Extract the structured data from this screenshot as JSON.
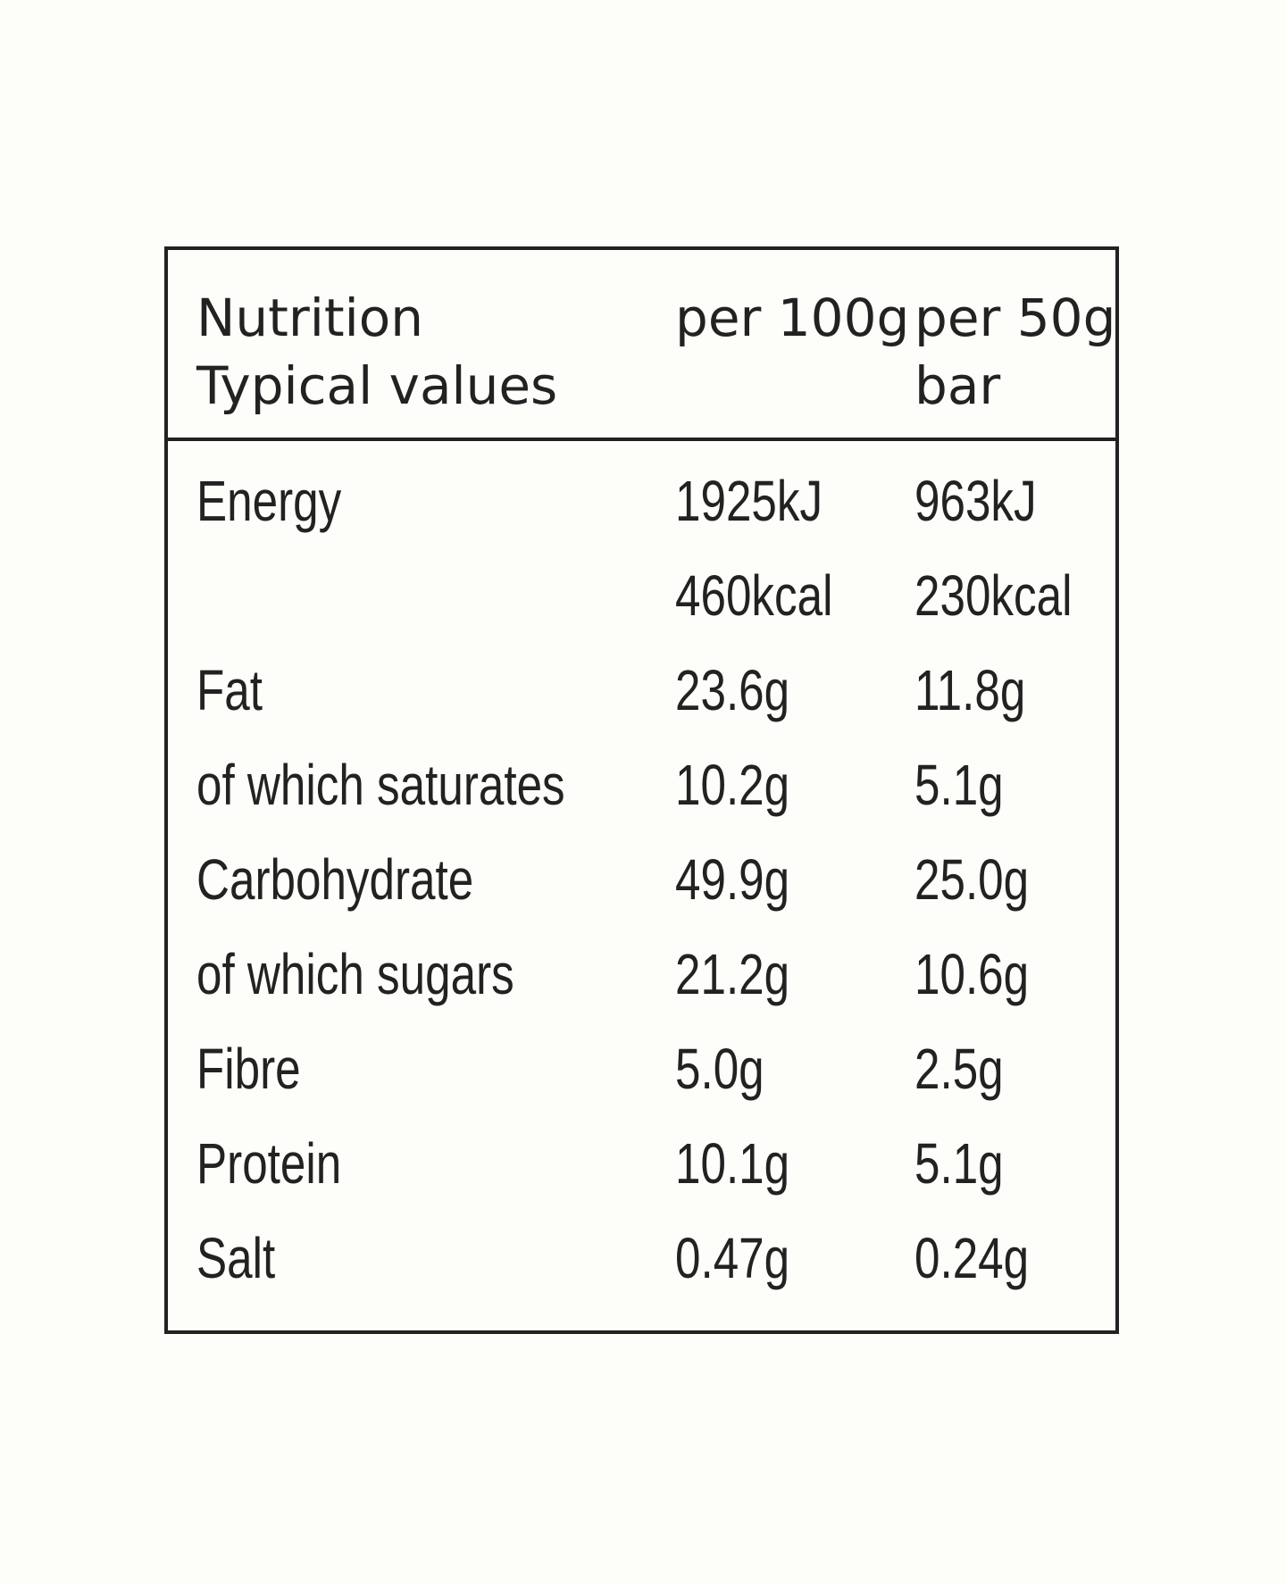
{
  "header": {
    "label_line1": "Nutrition",
    "label_line2": "Typical values",
    "col1": "per 100g",
    "col2_line1": "per 50g",
    "col2_line2": "bar"
  },
  "rows": [
    {
      "label": "Energy",
      "per100": "1925kJ",
      "per50": "963kJ"
    },
    {
      "label": "",
      "per100": "460kcal",
      "per50": "230kcal"
    },
    {
      "label": "Fat",
      "per100": "23.6g",
      "per50": "11.8g"
    },
    {
      "label": "of which saturates",
      "per100": "10.2g",
      "per50": "5.1g"
    },
    {
      "label": "Carbohydrate",
      "per100": "49.9g",
      "per50": "25.0g"
    },
    {
      "label": "of which sugars",
      "per100": "21.2g",
      "per50": "10.6g"
    },
    {
      "label": "Fibre",
      "per100": "5.0g",
      "per50": "2.5g"
    },
    {
      "label": "Protein",
      "per100": "10.1g",
      "per50": "5.1g"
    },
    {
      "label": "Salt",
      "per100": "0.47g",
      "per50": "0.24g"
    }
  ]
}
